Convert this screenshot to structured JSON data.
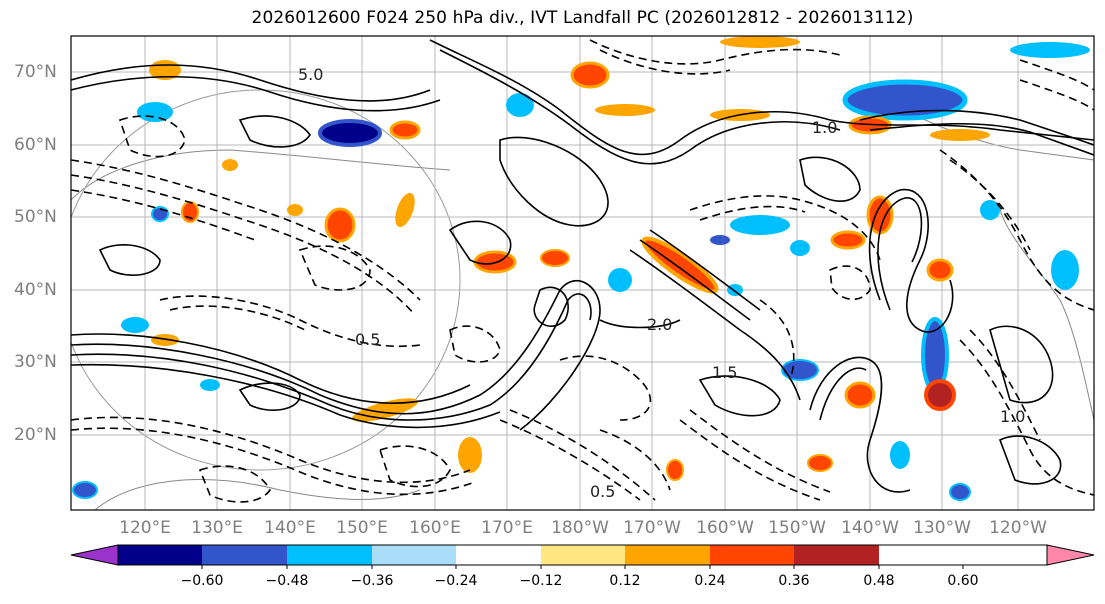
{
  "title": "2026012600 F024 250 hPa div., IVT Landfall PC (2026012812 - 2026013112)",
  "lat_labels": [
    "70°N",
    "60°N",
    "50°N",
    "40°N",
    "30°N",
    "20°N"
  ],
  "lon_labels": [
    "120°E",
    "130°E",
    "140°E",
    "150°E",
    "160°E",
    "170°E",
    "180°W",
    "170°W",
    "160°W",
    "150°W",
    "140°W",
    "130°W",
    "120°W"
  ],
  "contour_labels": [
    "5.0",
    "1.0",
    "2.0",
    "0.5",
    "1.5",
    "1.0",
    "0.5"
  ],
  "colorbar": {
    "ticks": [
      "−0.60",
      "−0.48",
      "−0.36",
      "−0.24",
      "−0.12",
      "0.12",
      "0.24",
      "0.36",
      "0.48",
      "0.60"
    ],
    "colors": [
      "#9933cc",
      "#00008b",
      "#3355cc",
      "#00bfff",
      "#aaddf7",
      "#ffffff",
      "#ffe680",
      "#ffa500",
      "#ff4500",
      "#b22222",
      "#ff88aa"
    ]
  }
}
